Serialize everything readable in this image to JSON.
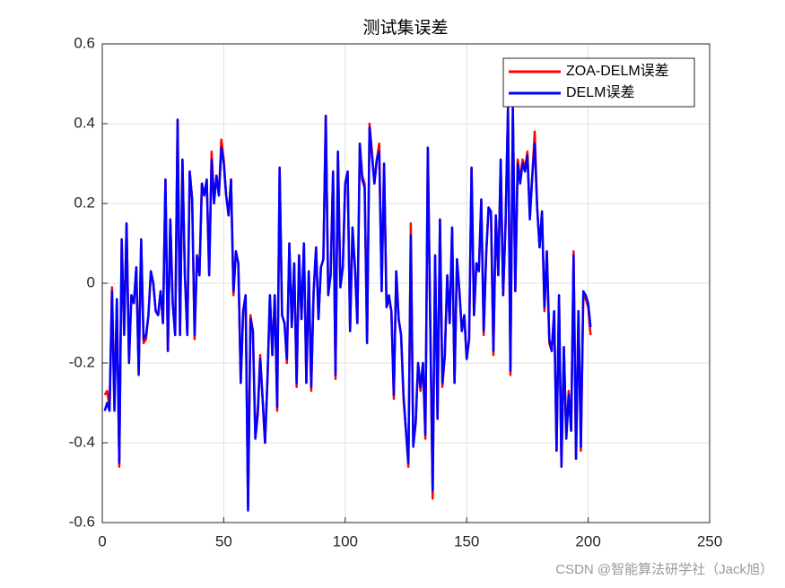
{
  "chart_data": {
    "type": "line",
    "title": "测试集误差",
    "watermark": "CSDN @智能算法研学社（Jack旭）",
    "xlim": [
      0,
      250
    ],
    "xticks": [
      0,
      50,
      100,
      150,
      200,
      250
    ],
    "ylim": [
      -0.6,
      0.6
    ],
    "yticks": [
      -0.6,
      -0.4,
      -0.2,
      0,
      0.2,
      0.4,
      0.6
    ],
    "grid": true,
    "legend": "upper right",
    "x": [
      1,
      2,
      3,
      4,
      5,
      6,
      7,
      8,
      9,
      10,
      11,
      12,
      13,
      14,
      15,
      16,
      17,
      18,
      19,
      20,
      21,
      22,
      23,
      24,
      25,
      26,
      27,
      28,
      29,
      30,
      31,
      32,
      33,
      34,
      35,
      36,
      37,
      38,
      39,
      40,
      41,
      42,
      43,
      44,
      45,
      46,
      47,
      48,
      49,
      50,
      51,
      52,
      53,
      54,
      55,
      56,
      57,
      58,
      59,
      60,
      61,
      62,
      63,
      64,
      65,
      66,
      67,
      68,
      69,
      70,
      71,
      72,
      73,
      74,
      75,
      76,
      77,
      78,
      79,
      80,
      81,
      82,
      83,
      84,
      85,
      86,
      87,
      88,
      89,
      90,
      91,
      92,
      93,
      94,
      95,
      96,
      97,
      98,
      99,
      100,
      101,
      102,
      103,
      104,
      105,
      106,
      107,
      108,
      109,
      110,
      111,
      112,
      113,
      114,
      115,
      116,
      117,
      118,
      119,
      120,
      121,
      122,
      123,
      124,
      125,
      126,
      127,
      128,
      129,
      130,
      131,
      132,
      133,
      134,
      135,
      136,
      137,
      138,
      139,
      140,
      141,
      142,
      143,
      144,
      145,
      146,
      147,
      148,
      149,
      150,
      151,
      152,
      153,
      154,
      155,
      156,
      157,
      158,
      159,
      160,
      161,
      162,
      163,
      164,
      165,
      166,
      167,
      168,
      169,
      170,
      171,
      172,
      173,
      174,
      175,
      176,
      177,
      178,
      179,
      180,
      181,
      182,
      183,
      184,
      185,
      186,
      187,
      188,
      189,
      190,
      191,
      192,
      193,
      194,
      195,
      196,
      197,
      198,
      199,
      200,
      201
    ],
    "series": [
      {
        "name": "ZOA-DELM误差",
        "color": "#ff0000",
        "values": [
          -0.28,
          -0.27,
          -0.31,
          -0.01,
          -0.31,
          -0.04,
          -0.46,
          0.11,
          -0.12,
          0.15,
          -0.19,
          -0.03,
          -0.05,
          0.04,
          -0.22,
          0.11,
          -0.15,
          -0.14,
          -0.08,
          0.03,
          0.0,
          -0.07,
          -0.08,
          -0.02,
          -0.1,
          0.26,
          -0.17,
          0.16,
          -0.05,
          -0.13,
          0.41,
          -0.13,
          0.31,
          0.02,
          -0.13,
          0.28,
          0.21,
          -0.14,
          0.07,
          0.02,
          0.25,
          0.22,
          0.26,
          0.02,
          0.33,
          0.21,
          0.27,
          0.22,
          0.36,
          0.31,
          0.22,
          0.17,
          0.26,
          -0.03,
          0.08,
          0.05,
          -0.25,
          -0.07,
          -0.03,
          -0.56,
          -0.08,
          -0.12,
          -0.38,
          -0.32,
          -0.18,
          -0.29,
          -0.4,
          -0.24,
          -0.03,
          -0.18,
          -0.03,
          -0.32,
          0.29,
          -0.08,
          -0.1,
          -0.2,
          0.1,
          -0.11,
          0.05,
          -0.26,
          0.07,
          -0.09,
          0.1,
          -0.25,
          0.03,
          -0.27,
          -0.02,
          0.09,
          -0.09,
          0.04,
          0.06,
          0.42,
          -0.02,
          0.02,
          0.28,
          -0.24,
          0.33,
          -0.01,
          0.04,
          0.25,
          0.28,
          -0.12,
          0.14,
          0.04,
          -0.1,
          0.35,
          0.27,
          0.25,
          -0.15,
          0.4,
          0.33,
          0.25,
          0.31,
          0.35,
          -0.02,
          0.3,
          -0.06,
          -0.04,
          -0.07,
          -0.29,
          0.03,
          -0.09,
          -0.13,
          -0.29,
          -0.37,
          -0.46,
          0.15,
          -0.4,
          -0.35,
          -0.2,
          -0.27,
          -0.2,
          -0.39,
          0.34,
          -0.1,
          -0.54,
          0.07,
          -0.34,
          0.16,
          -0.26,
          -0.18,
          0.02,
          -0.1,
          0.14,
          -0.25,
          0.06,
          -0.02,
          -0.12,
          -0.08,
          -0.19,
          -0.14,
          0.29,
          -0.08,
          0.05,
          0.03,
          0.21,
          -0.13,
          0.07,
          0.19,
          0.17,
          -0.18,
          0.17,
          0.02,
          0.31,
          -0.03,
          0.15,
          0.44,
          -0.23,
          0.44,
          -0.02,
          0.31,
          0.26,
          0.31,
          0.29,
          0.33,
          0.17,
          0.27,
          0.38,
          0.19,
          0.09,
          0.18,
          -0.07,
          0.08,
          -0.15,
          -0.17,
          -0.07,
          -0.42,
          -0.03,
          -0.46,
          -0.16,
          -0.38,
          -0.27,
          -0.37,
          0.08,
          -0.44,
          -0.07,
          -0.42,
          -0.03,
          -0.04,
          -0.06,
          -0.13
        ]
      },
      {
        "name": "DELM误差",
        "color": "#0000ff",
        "values": [
          -0.32,
          -0.3,
          -0.32,
          -0.02,
          -0.32,
          -0.04,
          -0.45,
          0.11,
          -0.13,
          0.15,
          -0.2,
          -0.03,
          -0.05,
          0.04,
          -0.23,
          0.11,
          -0.14,
          -0.13,
          -0.08,
          0.03,
          0.0,
          -0.07,
          -0.08,
          -0.02,
          -0.1,
          0.26,
          -0.17,
          0.16,
          -0.05,
          -0.13,
          0.41,
          -0.13,
          0.31,
          0.02,
          -0.13,
          0.28,
          0.21,
          -0.13,
          0.07,
          0.02,
          0.25,
          0.22,
          0.26,
          0.02,
          0.31,
          0.2,
          0.27,
          0.22,
          0.34,
          0.3,
          0.22,
          0.17,
          0.26,
          -0.02,
          0.08,
          0.05,
          -0.25,
          -0.07,
          -0.03,
          -0.57,
          -0.09,
          -0.12,
          -0.39,
          -0.33,
          -0.19,
          -0.29,
          -0.4,
          -0.24,
          -0.03,
          -0.18,
          -0.03,
          -0.31,
          0.29,
          -0.08,
          -0.1,
          -0.19,
          0.1,
          -0.11,
          0.05,
          -0.25,
          0.07,
          -0.09,
          0.1,
          -0.25,
          0.03,
          -0.26,
          -0.02,
          0.09,
          -0.09,
          0.04,
          0.06,
          0.42,
          -0.03,
          0.02,
          0.28,
          -0.23,
          0.33,
          -0.01,
          0.04,
          0.25,
          0.28,
          -0.12,
          0.14,
          0.04,
          -0.1,
          0.35,
          0.26,
          0.24,
          -0.15,
          0.39,
          0.32,
          0.25,
          0.31,
          0.33,
          -0.02,
          0.3,
          -0.06,
          -0.03,
          -0.07,
          -0.28,
          0.03,
          -0.09,
          -0.13,
          -0.28,
          -0.37,
          -0.45,
          0.12,
          -0.41,
          -0.35,
          -0.2,
          -0.26,
          -0.2,
          -0.38,
          0.34,
          -0.1,
          -0.52,
          0.07,
          -0.34,
          0.16,
          -0.25,
          -0.18,
          0.02,
          -0.1,
          0.14,
          -0.25,
          0.06,
          -0.02,
          -0.12,
          -0.08,
          -0.19,
          -0.14,
          0.29,
          -0.08,
          0.05,
          0.03,
          0.21,
          -0.12,
          0.07,
          0.19,
          0.18,
          -0.17,
          0.17,
          0.02,
          0.31,
          -0.03,
          0.15,
          0.44,
          -0.22,
          0.44,
          -0.02,
          0.3,
          0.25,
          0.3,
          0.28,
          0.32,
          0.16,
          0.27,
          0.35,
          0.19,
          0.09,
          0.18,
          -0.06,
          0.08,
          -0.14,
          -0.17,
          -0.07,
          -0.42,
          -0.03,
          -0.46,
          -0.16,
          -0.39,
          -0.28,
          -0.37,
          0.07,
          -0.44,
          -0.07,
          -0.41,
          -0.02,
          -0.03,
          -0.05,
          -0.11
        ]
      }
    ]
  }
}
